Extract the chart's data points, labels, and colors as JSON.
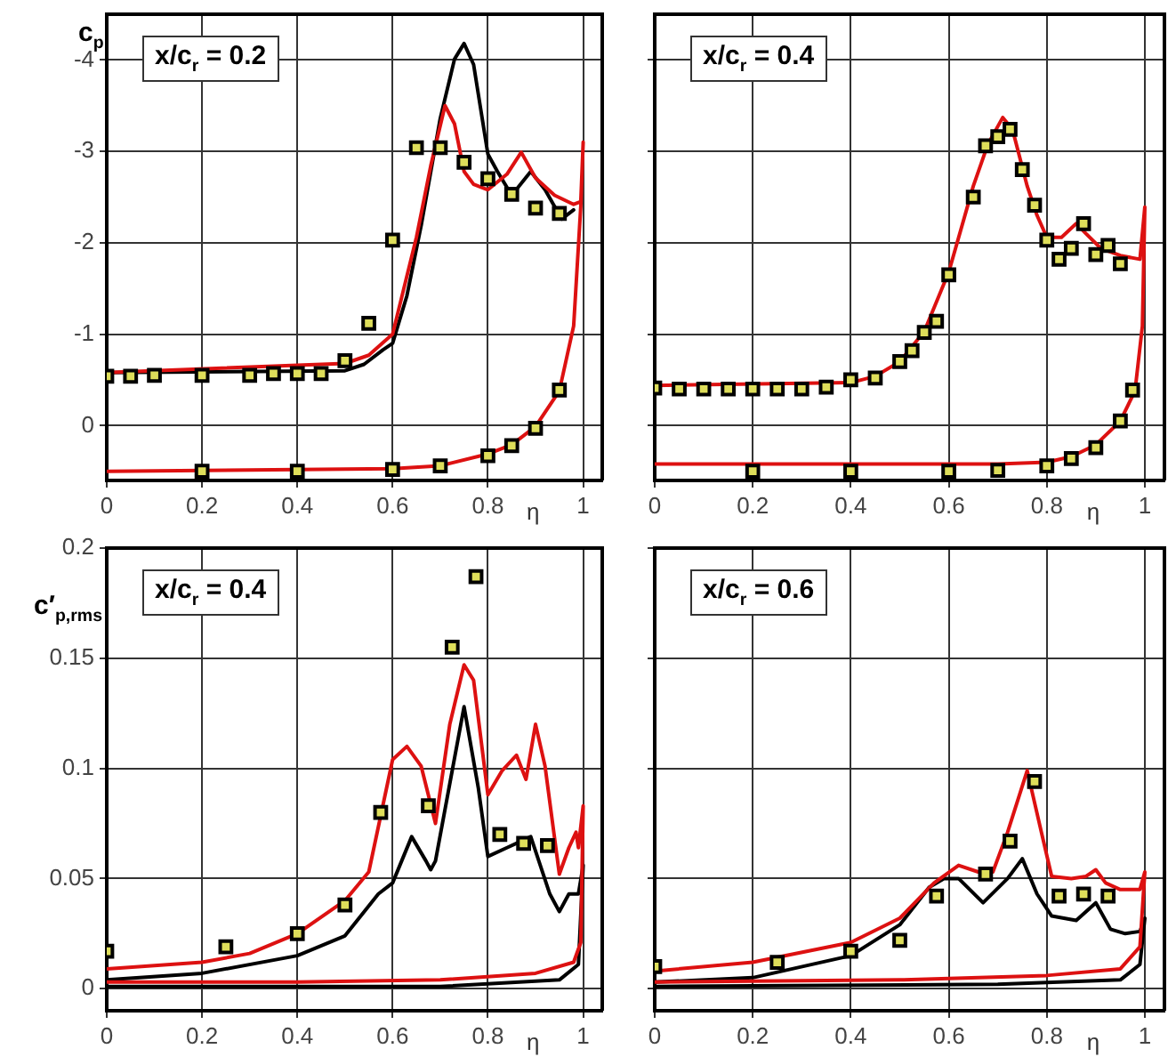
{
  "chart_data": [
    {
      "type": "line",
      "ylabel": "c$_{p}$",
      "xlabel": "η",
      "annotations": [
        "x/c$_{r}$ = 0.2"
      ],
      "xlim": [
        0,
        1.04
      ],
      "xticks": [
        0,
        0.2,
        0.4,
        0.6,
        0.8,
        1
      ],
      "ylim": [
        0.6,
        -4.5
      ],
      "yticks": [
        -4,
        -3,
        -2,
        -1,
        0
      ],
      "grid": true,
      "series": [
        {
          "type": "line",
          "color": "#000000",
          "x": [
            0,
            0.5,
            0.54,
            0.58,
            0.6,
            0.63,
            0.66,
            0.7,
            0.73,
            0.75,
            0.77,
            0.8,
            0.82,
            0.85,
            0.89,
            0.92,
            0.955,
            0.98
          ],
          "values": [
            -0.58,
            -0.6,
            -0.67,
            -0.83,
            -0.9,
            -1.42,
            -2.19,
            -3.36,
            -4.01,
            -4.18,
            -3.95,
            -2.97,
            -2.78,
            -2.52,
            -2.78,
            -2.58,
            -2.26,
            -2.36
          ]
        },
        {
          "type": "line",
          "color": "#dd1111",
          "x": [
            0,
            0.5,
            0.55,
            0.6,
            0.65,
            0.68,
            0.71,
            0.73,
            0.75,
            0.77,
            0.8,
            0.84,
            0.87,
            0.9,
            0.94,
            0.98,
            0.995,
            1.0,
            0.995,
            0.98,
            0.95,
            0.9,
            0.85,
            0.8,
            0.7,
            0.6,
            0
          ],
          "values": [
            -0.58,
            -0.68,
            -0.77,
            -1.0,
            -2.06,
            -2.84,
            -3.5,
            -3.3,
            -2.78,
            -2.64,
            -2.58,
            -2.75,
            -2.99,
            -2.71,
            -2.52,
            -2.42,
            -2.45,
            -3.1,
            -2.4,
            -1.09,
            -0.38,
            0.01,
            0.21,
            0.31,
            0.44,
            0.47,
            0.5
          ]
        },
        {
          "type": "scatter",
          "marker": "square",
          "color": "#dede5a",
          "x": [
            0,
            0.05,
            0.1,
            0.2,
            0.3,
            0.35,
            0.4,
            0.45,
            0.5,
            0.55,
            0.6,
            0.65,
            0.7,
            0.75,
            0.8,
            0.85,
            0.9,
            0.95,
            0.2,
            0.4,
            0.6,
            0.7,
            0.8,
            0.85,
            0.9,
            0.95
          ],
          "values": [
            -0.54,
            -0.54,
            -0.55,
            -0.55,
            -0.55,
            -0.57,
            -0.57,
            -0.57,
            -0.71,
            -1.12,
            -2.03,
            -3.04,
            -3.04,
            -2.88,
            -2.7,
            -2.53,
            -2.38,
            -2.32,
            0.5,
            0.5,
            0.48,
            0.44,
            0.33,
            0.22,
            0.03,
            -0.39
          ]
        }
      ]
    },
    {
      "type": "line",
      "xlabel": "η",
      "annotations": [
        "x/c$_{r}$ = 0.4"
      ],
      "xlim": [
        0,
        1.04
      ],
      "xticks": [
        0,
        0.2,
        0.4,
        0.6,
        0.8,
        1
      ],
      "ylim": [
        0.6,
        -4.5
      ],
      "yticks": [
        -4,
        -3,
        -2,
        -1,
        0
      ],
      "grid": true,
      "tick_labels": "x",
      "series": [
        {
          "type": "line",
          "color": "#dd1111",
          "x": [
            0,
            0.4,
            0.45,
            0.5,
            0.55,
            0.6,
            0.65,
            0.68,
            0.71,
            0.73,
            0.76,
            0.78,
            0.8,
            0.83,
            0.86,
            0.88,
            0.91,
            0.95,
            0.99,
            1.0,
            0.995,
            0.98,
            0.95,
            0.9,
            0.85,
            0.8,
            0.7,
            0
          ],
          "values": [
            -0.44,
            -0.47,
            -0.54,
            -0.7,
            -1.03,
            -1.68,
            -2.62,
            -3.08,
            -3.37,
            -3.24,
            -2.62,
            -2.3,
            -2.06,
            -2.06,
            -2.21,
            -2.1,
            -1.94,
            -1.86,
            -1.82,
            -2.39,
            -1.09,
            -0.38,
            -0.05,
            0.21,
            0.34,
            0.4,
            0.42,
            0.42
          ]
        },
        {
          "type": "scatter",
          "marker": "square",
          "color": "#dede5a",
          "x": [
            0,
            0.05,
            0.1,
            0.15,
            0.2,
            0.25,
            0.3,
            0.35,
            0.4,
            0.45,
            0.5,
            0.525,
            0.55,
            0.575,
            0.6,
            0.65,
            0.675,
            0.7,
            0.725,
            0.75,
            0.775,
            0.8,
            0.825,
            0.85,
            0.875,
            0.9,
            0.925,
            0.95,
            0.2,
            0.4,
            0.6,
            0.7,
            0.8,
            0.85,
            0.9,
            0.95,
            0.975
          ],
          "values": [
            -0.41,
            -0.4,
            -0.4,
            -0.4,
            -0.4,
            -0.4,
            -0.4,
            -0.42,
            -0.5,
            -0.52,
            -0.7,
            -0.82,
            -1.02,
            -1.14,
            -1.65,
            -2.5,
            -3.06,
            -3.16,
            -3.24,
            -2.8,
            -2.41,
            -2.03,
            -1.82,
            -1.94,
            -2.21,
            -1.87,
            -1.97,
            -1.77,
            0.5,
            0.5,
            0.5,
            0.49,
            0.44,
            0.36,
            0.24,
            -0.05,
            -0.39
          ]
        }
      ]
    },
    {
      "type": "line",
      "ylabel": "c′$_{p,rms}$",
      "xlabel": "η",
      "annotations": [
        "x/c$_{r}$ = 0.4"
      ],
      "xlim": [
        0,
        1.04
      ],
      "xticks": [
        0,
        0.2,
        0.4,
        0.6,
        0.8,
        1
      ],
      "ylim": [
        -0.01,
        0.2
      ],
      "yticks": [
        0,
        0.05,
        0.1,
        0.15,
        0.2
      ],
      "grid": true,
      "series": [
        {
          "type": "line",
          "color": "#000000",
          "x": [
            0,
            0.2,
            0.4,
            0.5,
            0.57,
            0.6,
            0.64,
            0.67,
            0.68,
            0.69,
            0.72,
            0.75,
            0.78,
            0.8,
            0.84,
            0.87,
            0.89,
            0.93,
            0.95,
            0.97,
            0.99,
            1.0,
            0.99,
            0.95,
            0.7,
            0
          ],
          "values": [
            0.004,
            0.007,
            0.015,
            0.024,
            0.043,
            0.048,
            0.069,
            0.058,
            0.054,
            0.058,
            0.093,
            0.128,
            0.091,
            0.06,
            0.064,
            0.067,
            0.069,
            0.043,
            0.035,
            0.043,
            0.043,
            0.056,
            0.011,
            0.004,
            0.001,
            0.001
          ]
        },
        {
          "type": "line",
          "color": "#dd1111",
          "x": [
            0,
            0.2,
            0.3,
            0.4,
            0.5,
            0.55,
            0.6,
            0.63,
            0.66,
            0.69,
            0.72,
            0.75,
            0.77,
            0.8,
            0.83,
            0.86,
            0.88,
            0.9,
            0.92,
            0.95,
            0.97,
            0.985,
            0.99,
            1.0,
            0.995,
            0.98,
            0.9,
            0.7,
            0.4,
            0
          ],
          "values": [
            0.009,
            0.012,
            0.016,
            0.025,
            0.04,
            0.053,
            0.104,
            0.11,
            0.101,
            0.075,
            0.12,
            0.147,
            0.14,
            0.088,
            0.099,
            0.106,
            0.095,
            0.12,
            0.101,
            0.052,
            0.064,
            0.071,
            0.064,
            0.083,
            0.021,
            0.012,
            0.007,
            0.004,
            0.003,
            0.003
          ]
        },
        {
          "type": "scatter",
          "marker": "square",
          "color": "#dede5a",
          "x": [
            0,
            0.25,
            0.4,
            0.5,
            0.575,
            0.675,
            0.725,
            0.775,
            0.825,
            0.875,
            0.925
          ],
          "values": [
            0.017,
            0.019,
            0.025,
            0.038,
            0.08,
            0.083,
            0.155,
            0.187,
            0.07,
            0.066,
            0.065
          ]
        }
      ]
    },
    {
      "type": "line",
      "xlabel": "η",
      "annotations": [
        "x/c$_{r}$ = 0.6"
      ],
      "xlim": [
        0,
        1.04
      ],
      "xticks": [
        0,
        0.2,
        0.4,
        0.6,
        0.8,
        1
      ],
      "ylim": [
        -0.01,
        0.2
      ],
      "yticks": [
        0,
        0.05,
        0.1,
        0.15,
        0.2
      ],
      "grid": true,
      "tick_labels": "x",
      "series": [
        {
          "type": "line",
          "color": "#000000",
          "x": [
            0,
            0.2,
            0.4,
            0.5,
            0.56,
            0.59,
            0.62,
            0.67,
            0.72,
            0.75,
            0.78,
            0.81,
            0.86,
            0.9,
            0.93,
            0.96,
            0.99,
            1.0,
            0.99,
            0.95,
            0.7,
            0
          ],
          "values": [
            0.003,
            0.005,
            0.015,
            0.029,
            0.046,
            0.05,
            0.05,
            0.039,
            0.05,
            0.059,
            0.043,
            0.033,
            0.031,
            0.039,
            0.027,
            0.025,
            0.026,
            0.032,
            0.011,
            0.004,
            0.002,
            0.001
          ]
        },
        {
          "type": "line",
          "color": "#dd1111",
          "x": [
            0,
            0.2,
            0.4,
            0.5,
            0.57,
            0.62,
            0.66,
            0.69,
            0.72,
            0.76,
            0.79,
            0.81,
            0.85,
            0.88,
            0.9,
            0.92,
            0.95,
            0.99,
            1.0,
            0.99,
            0.95,
            0.8,
            0.5,
            0
          ],
          "values": [
            0.008,
            0.012,
            0.021,
            0.032,
            0.048,
            0.056,
            0.053,
            0.053,
            0.071,
            0.099,
            0.07,
            0.051,
            0.05,
            0.051,
            0.054,
            0.048,
            0.045,
            0.045,
            0.053,
            0.019,
            0.009,
            0.006,
            0.004,
            0.003
          ]
        },
        {
          "type": "scatter",
          "marker": "square",
          "color": "#dede5a",
          "x": [
            0,
            0.25,
            0.4,
            0.5,
            0.575,
            0.675,
            0.725,
            0.775,
            0.825,
            0.875,
            0.925
          ],
          "values": [
            0.01,
            0.012,
            0.017,
            0.022,
            0.042,
            0.052,
            0.067,
            0.094,
            0.042,
            0.043,
            0.042
          ]
        }
      ]
    }
  ]
}
